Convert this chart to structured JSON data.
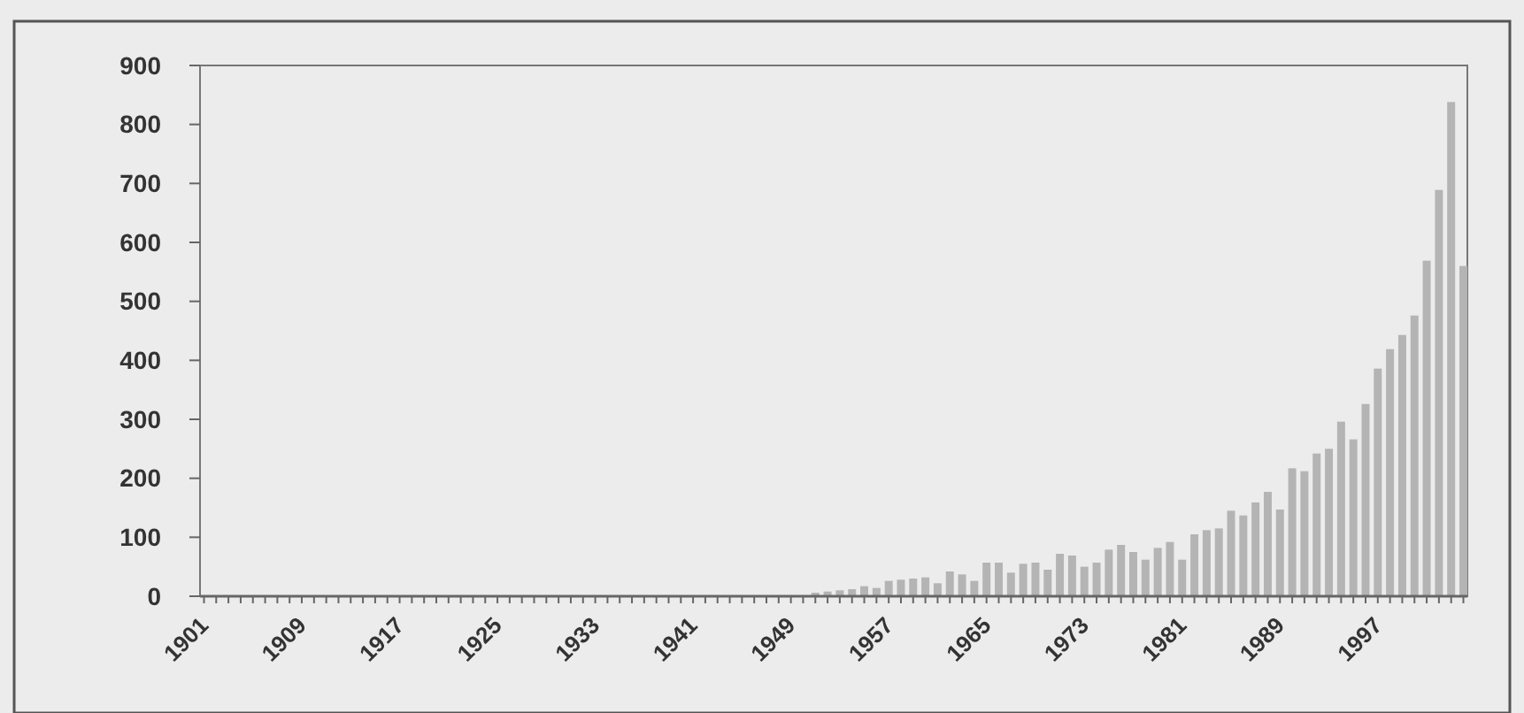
{
  "chart_data": {
    "type": "bar",
    "categories": [
      "1901",
      null,
      null,
      null,
      null,
      null,
      null,
      null,
      "1909",
      null,
      null,
      null,
      null,
      null,
      null,
      null,
      "1917",
      null,
      null,
      null,
      null,
      null,
      null,
      null,
      "1925",
      null,
      null,
      null,
      null,
      null,
      null,
      null,
      "1933",
      null,
      null,
      null,
      null,
      null,
      null,
      null,
      "1941",
      null,
      null,
      null,
      null,
      null,
      null,
      null,
      "1949",
      null,
      null,
      null,
      null,
      null,
      null,
      null,
      "1957",
      null,
      null,
      null,
      null,
      null,
      null,
      null,
      "1965",
      null,
      null,
      null,
      null,
      null,
      null,
      null,
      "1973",
      null,
      null,
      null,
      null,
      null,
      null,
      null,
      "1981",
      null,
      null,
      null,
      null,
      null,
      null,
      null,
      "1989",
      null,
      null,
      null,
      null,
      null,
      null,
      null,
      "1997",
      null,
      null,
      null,
      null,
      null,
      null,
      null
    ],
    "values": [
      0,
      0,
      0,
      0,
      0,
      0,
      0,
      0,
      0,
      0,
      0,
      0,
      0,
      0,
      0,
      0,
      0,
      0,
      0,
      0,
      0,
      0,
      0,
      0,
      0,
      0,
      0,
      0,
      0,
      0,
      0,
      0,
      0,
      0,
      0,
      0,
      0,
      0,
      0,
      0,
      0,
      0,
      0,
      0,
      0,
      0,
      0,
      0,
      0,
      0,
      6,
      8,
      10,
      12,
      17,
      14,
      26,
      28,
      30,
      32,
      22,
      42,
      37,
      26,
      57,
      57,
      40,
      55,
      57,
      45,
      72,
      69,
      50,
      57,
      79,
      87,
      75,
      62,
      82,
      92,
      62,
      105,
      112,
      115,
      145,
      137,
      159,
      177,
      147,
      217,
      212,
      242,
      250,
      296,
      266,
      326,
      386,
      419,
      443,
      476,
      569,
      689,
      838,
      560
    ],
    "color": "#b4b4b4",
    "ylim": [
      0,
      900
    ],
    "yticks": [
      0,
      100,
      200,
      300,
      400,
      500,
      600,
      700,
      800,
      900
    ],
    "grid": false
  }
}
